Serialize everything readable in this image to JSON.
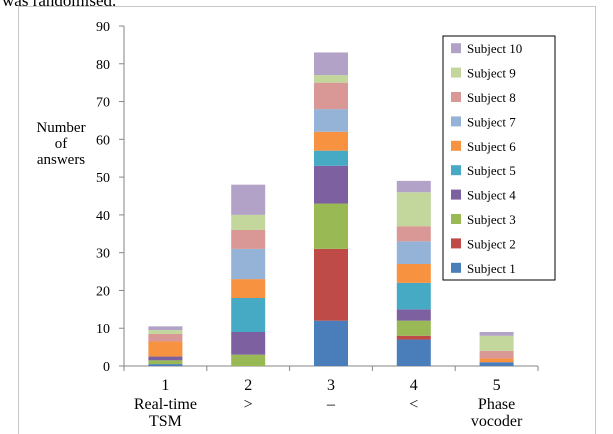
{
  "header_text": "was randomised.",
  "chart_data": {
    "type": "bar",
    "stacked": true,
    "categories": [
      "1",
      "2",
      "3",
      "4",
      "5"
    ],
    "category_sublabels": [
      [
        "Real-time",
        "TSM"
      ],
      [
        ">"
      ],
      [
        "–"
      ],
      [
        "<"
      ],
      [
        "Phase",
        "vocoder"
      ]
    ],
    "ylabel": [
      "Number",
      "of",
      "answers"
    ],
    "xlabel": "",
    "title": "",
    "ylim": [
      0,
      90
    ],
    "yticks": [
      0,
      10,
      20,
      30,
      40,
      50,
      60,
      70,
      80,
      90
    ],
    "grid": false,
    "legend_position": "top-right",
    "series": [
      {
        "name": "Subject 1",
        "color": "#4a7ebb",
        "values": [
          0.5,
          0,
          12,
          7,
          1
        ]
      },
      {
        "name": "Subject 2",
        "color": "#be4b48",
        "values": [
          0,
          0,
          19,
          1,
          0
        ]
      },
      {
        "name": "Subject 3",
        "color": "#98b954",
        "values": [
          1,
          3,
          12,
          4,
          0
        ]
      },
      {
        "name": "Subject 4",
        "color": "#7d60a0",
        "values": [
          1,
          6,
          10,
          3,
          0
        ]
      },
      {
        "name": "Subject 5",
        "color": "#46aac5",
        "values": [
          0,
          9,
          4,
          7,
          0
        ]
      },
      {
        "name": "Subject 6",
        "color": "#f69240",
        "values": [
          4,
          5,
          5,
          5,
          1
        ]
      },
      {
        "name": "Subject 7",
        "color": "#95b3d7",
        "values": [
          0,
          8,
          6,
          6,
          0
        ]
      },
      {
        "name": "Subject 8",
        "color": "#d99795",
        "values": [
          2,
          5,
          7,
          4,
          2
        ]
      },
      {
        "name": "Subject 9",
        "color": "#c3d69b",
        "values": [
          1,
          4,
          2,
          9,
          4
        ]
      },
      {
        "name": "Subject 10",
        "color": "#b3a2c7",
        "values": [
          1,
          8,
          6,
          3,
          1
        ]
      }
    ]
  }
}
